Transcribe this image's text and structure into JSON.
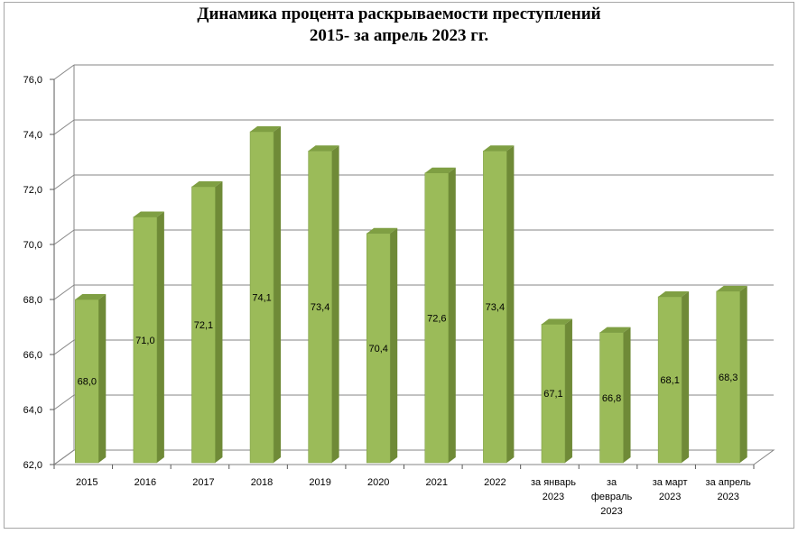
{
  "chart_data": {
    "type": "bar",
    "title": "Динамика процента раскрываемости преступлений",
    "subtitle": "2015- за апрель 2023 гг.",
    "categories": [
      [
        "2015"
      ],
      [
        "2016"
      ],
      [
        "2017"
      ],
      [
        "2018"
      ],
      [
        "2019"
      ],
      [
        "2020"
      ],
      [
        "2021"
      ],
      [
        "2022"
      ],
      [
        "за январь",
        "2023"
      ],
      [
        "за",
        "февраль",
        "2023"
      ],
      [
        "за март",
        "2023"
      ],
      [
        "за апрель",
        "2023"
      ]
    ],
    "values": [
      68.0,
      71.0,
      72.1,
      74.1,
      73.4,
      70.4,
      72.6,
      73.4,
      67.1,
      66.8,
      68.1,
      68.3
    ],
    "value_labels": [
      "68,0",
      "71,0",
      "72,1",
      "74,1",
      "73,4",
      "70,4",
      "72,6",
      "73,4",
      "67,1",
      "66,8",
      "68,1",
      "68,3"
    ],
    "ylim": [
      62,
      76
    ],
    "yticks": [
      62,
      64,
      66,
      68,
      70,
      72,
      74,
      76
    ],
    "ytick_labels": [
      "62,0",
      "64,0",
      "66,0",
      "68,0",
      "70,0",
      "72,0",
      "74,0",
      "76,0"
    ],
    "grid": true,
    "legend": "none",
    "style": "3d-column",
    "colors": {
      "bar_front": "#9bbb59",
      "bar_side": "#6f8a37",
      "bar_top": "#7f9f43",
      "grid": "#868686",
      "axis": "#595959"
    }
  }
}
